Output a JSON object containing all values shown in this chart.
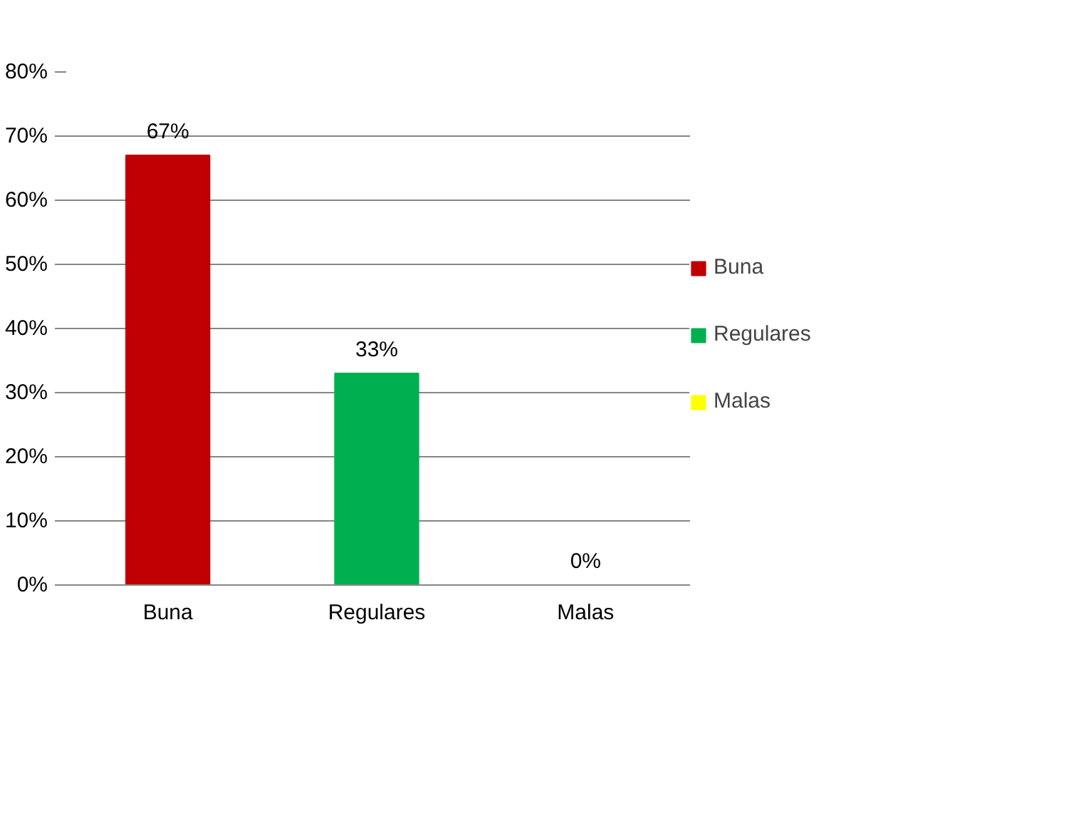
{
  "chart_data": {
    "type": "bar",
    "categories": [
      "Buna",
      "Regulares",
      "Malas"
    ],
    "series": [
      {
        "name": "Buna",
        "color": "#c00000",
        "values": [
          67,
          null,
          null
        ],
        "value_labels": [
          "67%",
          null,
          null
        ]
      },
      {
        "name": "Regulares",
        "color": "#00b050",
        "values": [
          null,
          33,
          null
        ],
        "value_labels": [
          null,
          "33%",
          null
        ]
      },
      {
        "name": "Malas",
        "color": "#ffff00",
        "values": [
          null,
          null,
          0
        ],
        "value_labels": [
          null,
          null,
          "0%"
        ]
      }
    ],
    "stacked": true,
    "ylim": [
      0,
      80
    ],
    "yticks": [
      {
        "value": 0,
        "label": "0%"
      },
      {
        "value": 10,
        "label": "10%"
      },
      {
        "value": 20,
        "label": "20%"
      },
      {
        "value": 30,
        "label": "30%"
      },
      {
        "value": 40,
        "label": "40%"
      },
      {
        "value": 50,
        "label": "50%"
      },
      {
        "value": 60,
        "label": "60%"
      },
      {
        "value": 70,
        "label": "70%"
      },
      {
        "value": 80,
        "label": "80%"
      }
    ],
    "grid": "y",
    "legend": "right"
  }
}
